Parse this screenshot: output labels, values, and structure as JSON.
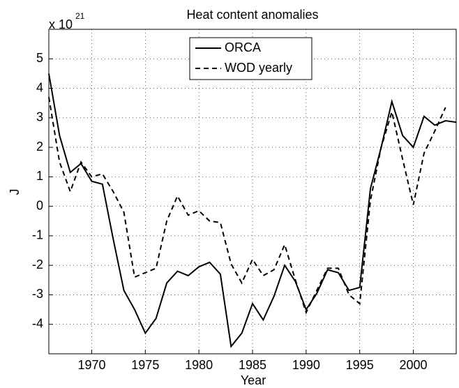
{
  "chart_data": {
    "type": "line",
    "title": "Heat content anomalies",
    "xlabel": "Year",
    "ylabel": "J",
    "exponent_label": "x 10",
    "exponent": "21",
    "x": [
      1966,
      1967,
      1968,
      1969,
      1970,
      1971,
      1972,
      1973,
      1974,
      1975,
      1976,
      1977,
      1978,
      1979,
      1980,
      1981,
      1982,
      1983,
      1984,
      1985,
      1986,
      1987,
      1988,
      1989,
      1990,
      1991,
      1992,
      1993,
      1994,
      1995,
      1996,
      1997,
      1998,
      1999,
      2000,
      2001,
      2002,
      2003,
      2004
    ],
    "series": [
      {
        "name": "ORCA",
        "color": "#000000",
        "dash": "solid",
        "values": [
          4.5,
          2.4,
          1.15,
          1.45,
          0.85,
          0.75,
          -1.1,
          -2.85,
          -3.5,
          -4.3,
          -3.8,
          -2.6,
          -2.2,
          -2.35,
          -2.05,
          -1.9,
          -2.3,
          -4.75,
          -4.3,
          -3.3,
          -3.85,
          -3.05,
          -2.0,
          -2.55,
          -3.5,
          -2.95,
          -2.15,
          -2.25,
          -2.85,
          -2.75,
          0.6,
          2.0,
          3.55,
          2.4,
          2.0,
          3.05,
          2.75,
          2.9,
          2.85
        ]
      },
      {
        "name": "WOD yearly",
        "color": "#000000",
        "dash": "dashed",
        "values": [
          3.7,
          1.5,
          0.5,
          1.5,
          1.0,
          1.1,
          0.5,
          -0.2,
          -2.4,
          -2.25,
          -2.1,
          -0.5,
          0.35,
          -0.3,
          -0.15,
          -0.5,
          -0.55,
          -1.95,
          -2.6,
          -1.8,
          -2.35,
          -2.15,
          -1.3,
          -2.5,
          -3.6,
          -2.85,
          -2.1,
          -2.1,
          -3.0,
          -3.3,
          0.2,
          2.0,
          3.2,
          1.6,
          0.05,
          1.8,
          2.55,
          3.35,
          null
        ]
      }
    ],
    "xlim": [
      1966,
      2004
    ],
    "ylim": [
      -5,
      6
    ],
    "xticks": [
      1970,
      1975,
      1980,
      1985,
      1990,
      1995,
      2000
    ],
    "yticks": [
      -4,
      -3,
      -2,
      -1,
      0,
      1,
      2,
      3,
      4,
      5
    ],
    "grid": true,
    "legend": "top"
  }
}
